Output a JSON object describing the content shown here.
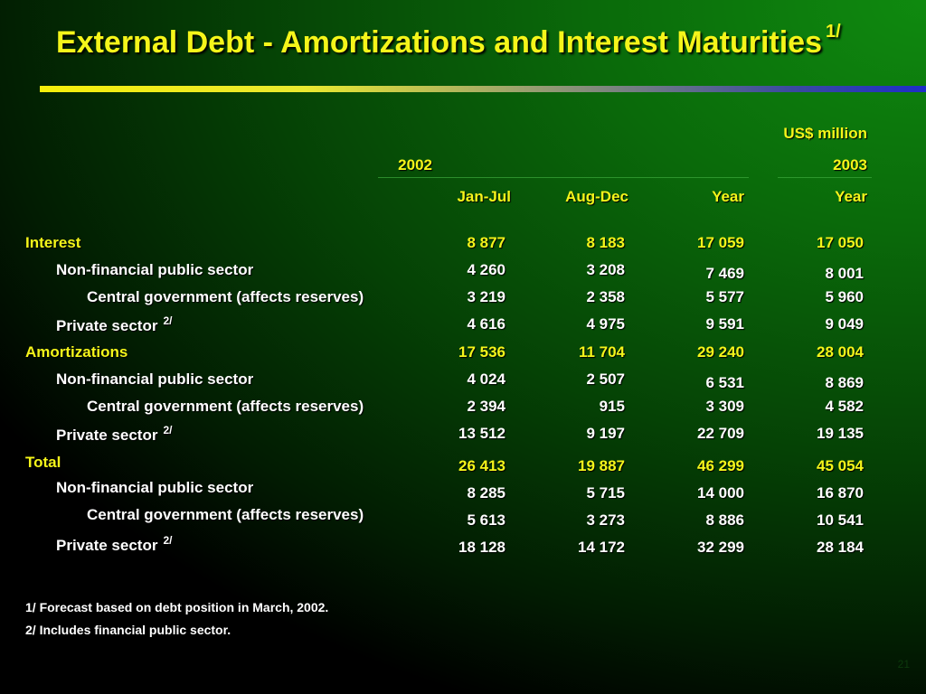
{
  "title": {
    "text": "External Debt - Amortizations and Interest Maturities",
    "sup": "1/"
  },
  "unit": "US$ million",
  "header": {
    "year1": "2002",
    "year2": "2003",
    "cols": [
      "Jan-Jul",
      "Aug-Dec",
      "Year",
      "Year"
    ]
  },
  "sections": [
    {
      "label": "Interest",
      "total": [
        "8 877",
        "8 183",
        "17 059",
        "17 050"
      ],
      "rows": [
        {
          "label": "Non-financial public sector",
          "note": "",
          "values": [
            "4 260",
            "3 208",
            "7 469",
            "8 001"
          ]
        },
        {
          "label": "Central government (affects reserves)",
          "note": "",
          "values": [
            "3 219",
            "2 358",
            "5 577",
            "5 960"
          ]
        },
        {
          "label": "Private sector",
          "note": "2/",
          "values": [
            "4 616",
            "4 975",
            "9 591",
            "9 049"
          ]
        }
      ]
    },
    {
      "label": "Amortizations",
      "total": [
        "17 536",
        "11 704",
        "29 240",
        "28 004"
      ],
      "rows": [
        {
          "label": "Non-financial public sector",
          "note": "",
          "values": [
            "4 024",
            "2 507",
            "6 531",
            "8 869"
          ]
        },
        {
          "label": "Central government (affects reserves)",
          "note": "",
          "values": [
            "2 394",
            "915",
            "3 309",
            "4 582"
          ]
        },
        {
          "label": "Private sector",
          "note": "2/",
          "values": [
            "13 512",
            "9 197",
            "22 709",
            "19 135"
          ]
        }
      ]
    },
    {
      "label": "Total",
      "total": [
        "26 413",
        "19 887",
        "46 299",
        "45 054"
      ],
      "rows": [
        {
          "label": "Non-financial public sector",
          "note": "",
          "values": [
            "8 285",
            "5 715",
            "14 000",
            "16 870"
          ]
        },
        {
          "label": "Central government (affects reserves)",
          "note": "",
          "values": [
            "5 613",
            "3 273",
            "8 886",
            "10 541"
          ]
        },
        {
          "label": "Private sector",
          "note": "2/",
          "values": [
            "18 128",
            "14 172",
            "32 299",
            "28 184"
          ]
        }
      ]
    }
  ],
  "footnotes": [
    "1/ Forecast based on debt position in March, 2002.",
    "2/ Includes financial public sector."
  ],
  "page_number": "21"
}
